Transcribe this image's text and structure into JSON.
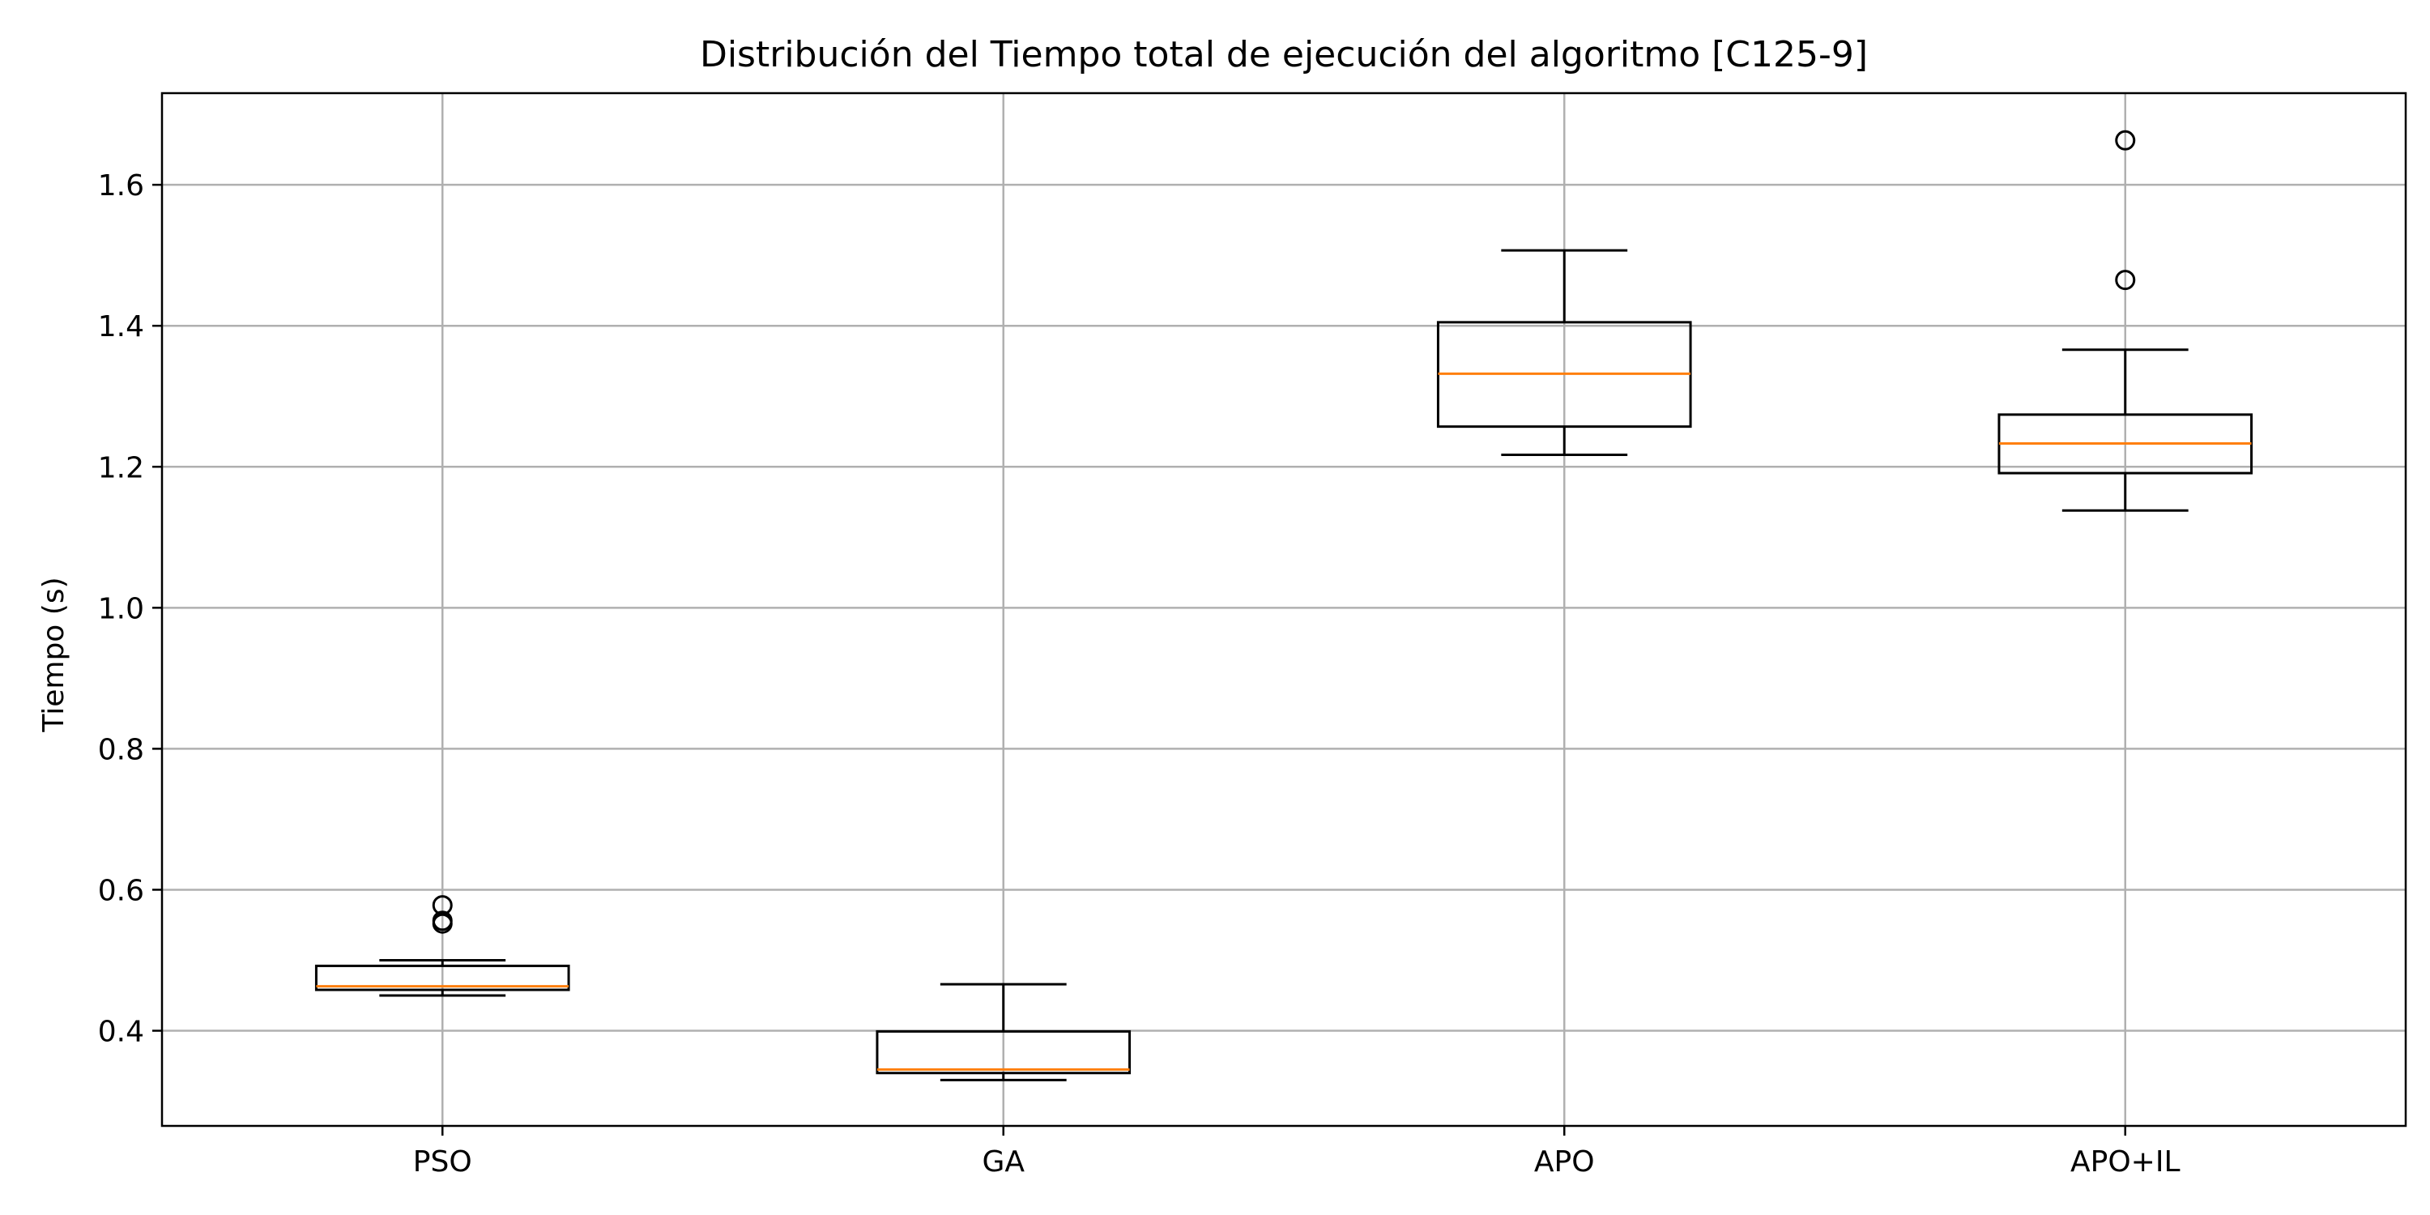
{
  "chart_data": {
    "type": "box",
    "title": "Distribución del Tiempo total de ejecución del algoritmo [C125-9]",
    "xlabel": "",
    "ylabel": "Tiempo (s)",
    "ylim": [
      0.265,
      1.73
    ],
    "yticks": [
      0.4,
      0.6,
      0.8,
      1.0,
      1.2,
      1.4,
      1.6
    ],
    "ytick_labels": [
      "0.4",
      "0.6",
      "0.8",
      "1.0",
      "1.2",
      "1.4",
      "1.6"
    ],
    "grid": true,
    "categories": [
      "PSO",
      "GA",
      "APO",
      "APO+IL"
    ],
    "boxes": [
      {
        "label": "PSO",
        "whisker_low": 0.45,
        "q1": 0.458,
        "median": 0.463,
        "q3": 0.492,
        "whisker_high": 0.5,
        "outliers": [
          0.552,
          0.556,
          0.578
        ]
      },
      {
        "label": "GA",
        "whisker_low": 0.33,
        "q1": 0.34,
        "median": 0.345,
        "q3": 0.399,
        "whisker_high": 0.466,
        "outliers": []
      },
      {
        "label": "APO",
        "whisker_low": 1.217,
        "q1": 1.257,
        "median": 1.332,
        "q3": 1.405,
        "whisker_high": 1.507,
        "outliers": []
      },
      {
        "label": "APO+IL",
        "whisker_low": 1.138,
        "q1": 1.191,
        "median": 1.233,
        "q3": 1.274,
        "whisker_high": 1.366,
        "outliers": [
          1.465,
          1.663
        ]
      }
    ],
    "colors": {
      "box": "#000000",
      "median": "#ff7f0e",
      "grid": "#b0b0b0"
    }
  }
}
